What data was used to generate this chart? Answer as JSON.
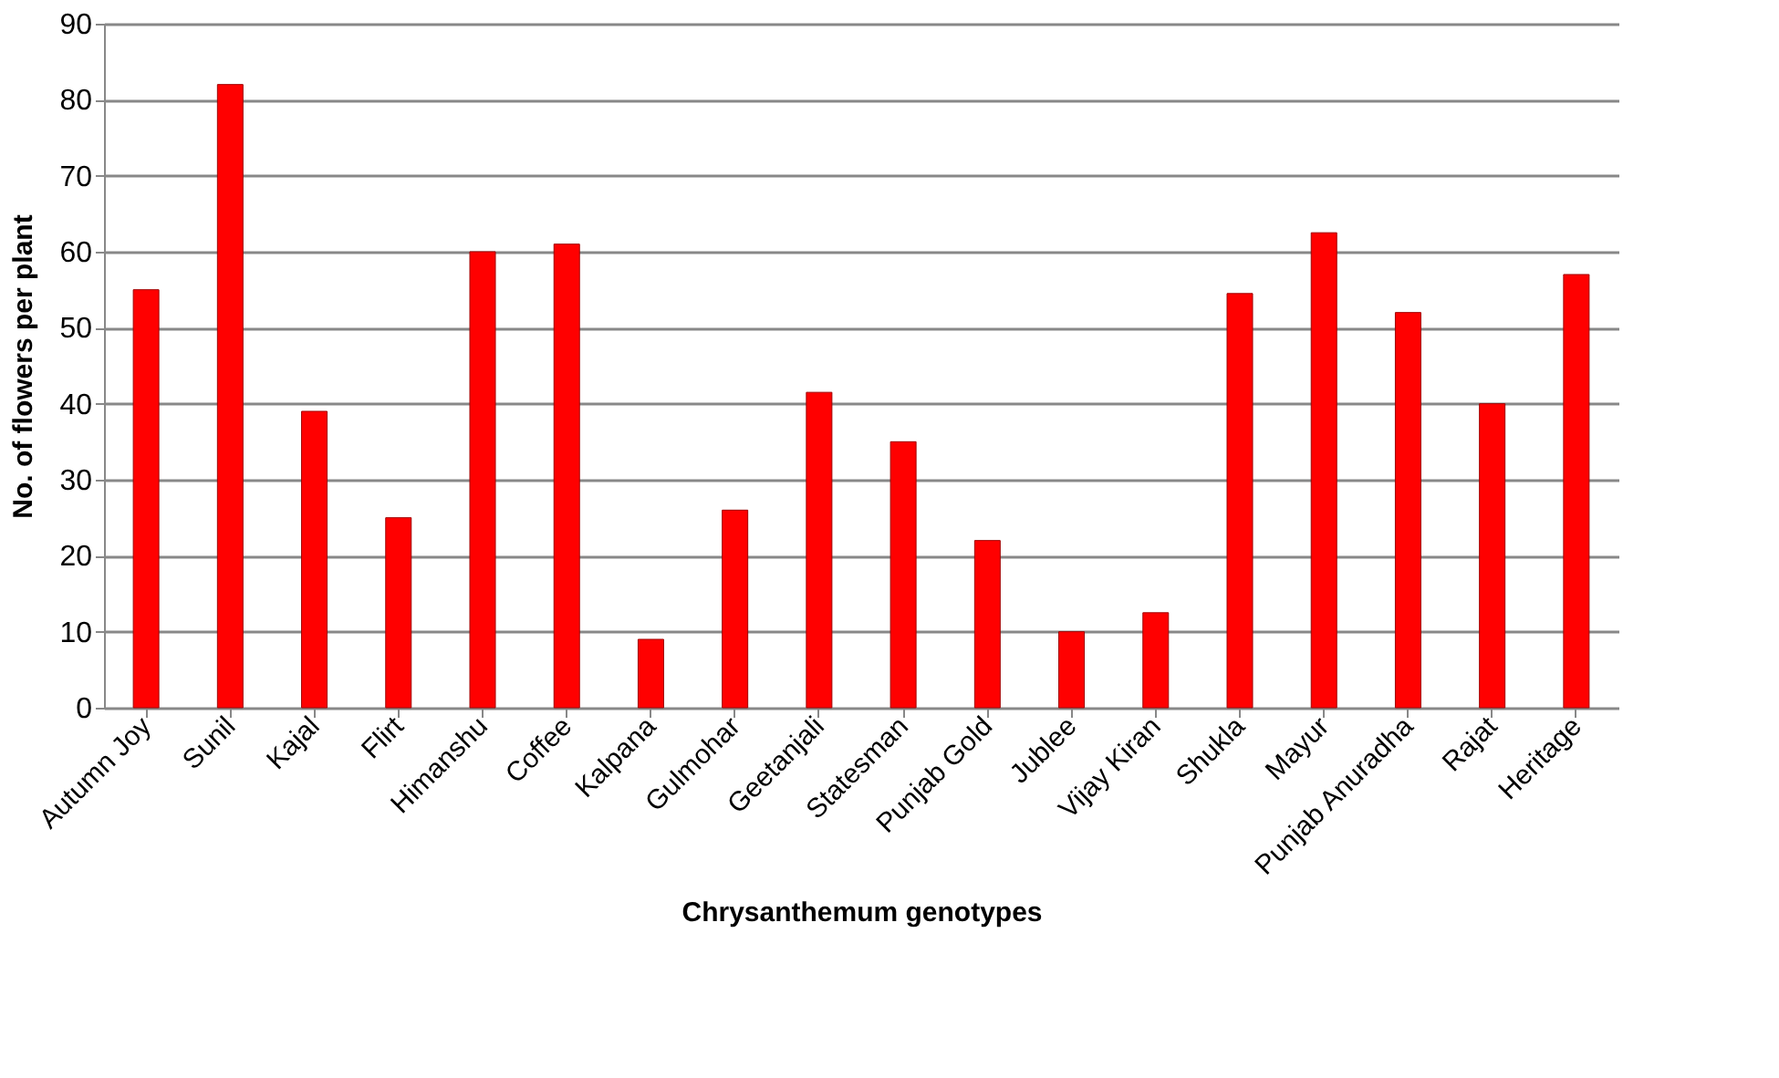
{
  "chart_data": {
    "type": "bar",
    "xlabel": "Chrysanthemum genotypes",
    "ylabel": "No. of flowers per  plant",
    "categories": [
      "Autumn Joy",
      "Sunil",
      "Kajal",
      "Flirt",
      "Himanshu",
      "Coffee",
      "Kalpana",
      "Gulmohar",
      "Geetanjali",
      "Statesman",
      "Punjab Gold",
      "Jublee",
      "Vijay Kiran",
      "Shukla",
      "Mayur",
      "Punjab Anuradha",
      "Rajat",
      "Heritage"
    ],
    "values": [
      55,
      82,
      39,
      25,
      60,
      61,
      9,
      26,
      41.5,
      35,
      22,
      10,
      12.5,
      54.5,
      62.5,
      52,
      40,
      57
    ],
    "color": "#ff0000",
    "ylim": [
      0,
      90
    ],
    "yticks": [
      0,
      10,
      20,
      30,
      40,
      50,
      60,
      70,
      80,
      90
    ],
    "grid": "y"
  }
}
